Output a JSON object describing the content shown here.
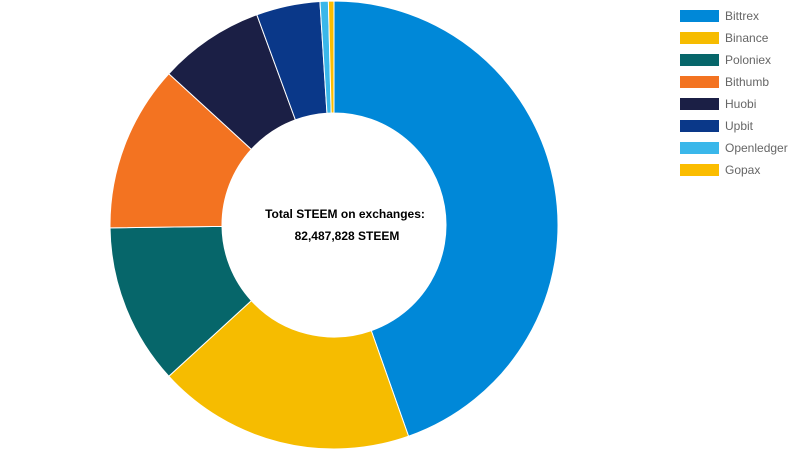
{
  "chart_data": {
    "type": "pie",
    "variant": "doughnut",
    "center_label_line1": "Total STEEM on exchanges:",
    "center_label_line2": "82,487,828 STEEM",
    "legend_position": "right",
    "slices": [
      {
        "label": "Bittrex",
        "percent": 44.6,
        "color": "#0088d8"
      },
      {
        "label": "Binance",
        "percent": 18.6,
        "color": "#f6bc00"
      },
      {
        "label": "Poloniex",
        "percent": 11.6,
        "color": "#06666a"
      },
      {
        "label": "Bithumb",
        "percent": 12.0,
        "color": "#f37321"
      },
      {
        "label": "Huobi",
        "percent": 7.6,
        "color": "#1b1f45"
      },
      {
        "label": "Upbit",
        "percent": 4.6,
        "color": "#0a3889"
      },
      {
        "label": "Openledger",
        "percent": 0.6,
        "color": "#3ab7ea"
      },
      {
        "label": "Gopax",
        "percent": 0.4,
        "color": "#fbbd00"
      }
    ]
  }
}
